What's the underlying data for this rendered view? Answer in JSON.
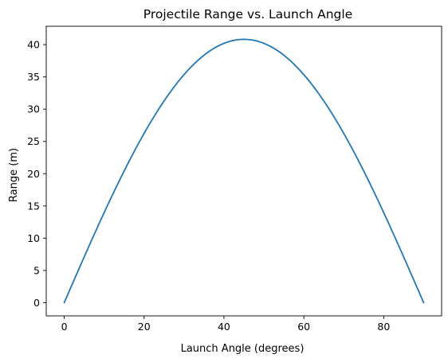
{
  "chart_data": {
    "type": "line",
    "title": "Projectile Range vs. Launch Angle",
    "xlabel": "Launch Angle (degrees)",
    "ylabel": "Range (m)",
    "xlim": [
      -4.5,
      94.5
    ],
    "ylim": [
      -2.04,
      42.85
    ],
    "xticks": [
      0,
      20,
      40,
      60,
      80
    ],
    "xtick_labels": [
      "0",
      "20",
      "40",
      "60",
      "80"
    ],
    "yticks": [
      0,
      5,
      10,
      15,
      20,
      25,
      30,
      35,
      40
    ],
    "ytick_labels": [
      "0",
      "5",
      "10",
      "15",
      "20",
      "25",
      "30",
      "35",
      "40"
    ],
    "grid": false,
    "series": [
      {
        "color": "#1f77b4",
        "x": [
          0,
          5,
          10,
          15,
          20,
          25,
          30,
          35,
          40,
          45,
          50,
          55,
          60,
          65,
          70,
          75,
          80,
          85,
          90
        ],
        "y": [
          0,
          7.09,
          13.96,
          20.41,
          26.24,
          31.27,
          35.35,
          38.35,
          40.2,
          40.82,
          40.2,
          38.35,
          35.35,
          31.27,
          26.24,
          20.41,
          13.96,
          7.09,
          0
        ]
      }
    ]
  }
}
